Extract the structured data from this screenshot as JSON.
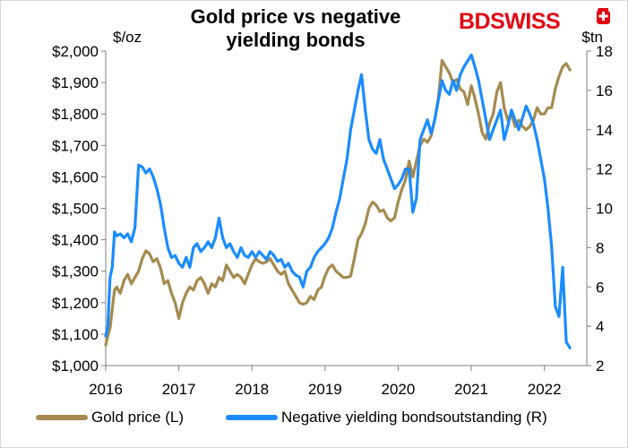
{
  "header": {
    "title_line1": "Gold price vs negative",
    "title_line2": "yielding bonds",
    "logo_text": "BDSWISS",
    "logo_icon": "swiss-cross-icon",
    "logo_color": "#e30613"
  },
  "chart_data": {
    "type": "line",
    "x_ticks": [
      "2016",
      "2017",
      "2018",
      "2019",
      "2020",
      "2021",
      "2022"
    ],
    "xlim": [
      2016,
      2022.58
    ],
    "left_axis": {
      "unit": "$/oz",
      "ylim": [
        1000,
        2000
      ],
      "ticks": [
        "$1,000",
        "$1,100",
        "$1,200",
        "$1,300",
        "$1,400",
        "$1,500",
        "$1,600",
        "$1,700",
        "$1,800",
        "$1,900",
        "$2,000"
      ]
    },
    "right_axis": {
      "unit": "$tn",
      "ylim": [
        2,
        18
      ],
      "ticks": [
        "2",
        "4",
        "6",
        "8",
        "10",
        "12",
        "14",
        "16",
        "18"
      ]
    },
    "grid": false,
    "legend_position": "bottom",
    "series": [
      {
        "name": "Gold price (L)",
        "axis": "left",
        "color": "#a68a4f",
        "x": [
          2016.0,
          2016.03,
          2016.06,
          2016.09,
          2016.12,
          2016.15,
          2016.2,
          2016.25,
          2016.3,
          2016.35,
          2016.4,
          2016.45,
          2016.5,
          2016.55,
          2016.6,
          2016.65,
          2016.7,
          2016.75,
          2016.8,
          2016.85,
          2016.9,
          2016.95,
          2017.0,
          2017.05,
          2017.1,
          2017.15,
          2017.2,
          2017.25,
          2017.3,
          2017.35,
          2017.4,
          2017.45,
          2017.5,
          2017.55,
          2017.6,
          2017.65,
          2017.7,
          2017.75,
          2017.8,
          2017.85,
          2017.9,
          2017.95,
          2018.0,
          2018.05,
          2018.1,
          2018.15,
          2018.2,
          2018.25,
          2018.3,
          2018.35,
          2018.4,
          2018.45,
          2018.5,
          2018.55,
          2018.6,
          2018.65,
          2018.7,
          2018.75,
          2018.8,
          2018.85,
          2018.9,
          2018.95,
          2019.0,
          2019.05,
          2019.1,
          2019.15,
          2019.2,
          2019.25,
          2019.3,
          2019.35,
          2019.4,
          2019.45,
          2019.5,
          2019.55,
          2019.6,
          2019.65,
          2019.7,
          2019.75,
          2019.8,
          2019.85,
          2019.9,
          2019.95,
          2020.0,
          2020.05,
          2020.1,
          2020.15,
          2020.2,
          2020.25,
          2020.3,
          2020.35,
          2020.4,
          2020.45,
          2020.5,
          2020.55,
          2020.6,
          2020.65,
          2020.7,
          2020.75,
          2020.8,
          2020.85,
          2020.9,
          2020.95,
          2021.0,
          2021.05,
          2021.1,
          2021.15,
          2021.2,
          2021.25,
          2021.3,
          2021.35,
          2021.4,
          2021.45,
          2021.5,
          2021.55,
          2021.6,
          2021.65,
          2021.7,
          2021.75,
          2021.8,
          2021.85,
          2021.9,
          2021.95,
          2022.0,
          2022.05,
          2022.1,
          2022.15,
          2022.2,
          2022.25,
          2022.3,
          2022.35
        ],
        "y": [
          1065,
          1095,
          1120,
          1180,
          1240,
          1250,
          1230,
          1270,
          1290,
          1260,
          1280,
          1300,
          1340,
          1365,
          1355,
          1330,
          1340,
          1310,
          1260,
          1270,
          1230,
          1200,
          1150,
          1200,
          1230,
          1250,
          1240,
          1270,
          1280,
          1260,
          1230,
          1260,
          1250,
          1280,
          1270,
          1320,
          1300,
          1280,
          1290,
          1280,
          1260,
          1290,
          1320,
          1340,
          1330,
          1325,
          1330,
          1340,
          1320,
          1300,
          1290,
          1300,
          1260,
          1240,
          1220,
          1200,
          1195,
          1200,
          1220,
          1210,
          1240,
          1250,
          1285,
          1310,
          1320,
          1300,
          1290,
          1280,
          1280,
          1285,
          1340,
          1400,
          1420,
          1450,
          1500,
          1520,
          1510,
          1490,
          1495,
          1470,
          1460,
          1470,
          1520,
          1560,
          1590,
          1650,
          1600,
          1650,
          1700,
          1720,
          1710,
          1730,
          1780,
          1850,
          1970,
          1950,
          1930,
          1900,
          1910,
          1880,
          1870,
          1830,
          1890,
          1850,
          1800,
          1740,
          1720,
          1770,
          1800,
          1870,
          1900,
          1820,
          1780,
          1800,
          1760,
          1780,
          1760,
          1750,
          1760,
          1780,
          1820,
          1800,
          1800,
          1820,
          1820,
          1880,
          1920,
          1950,
          1960,
          1940
        ]
      },
      {
        "name": "Negative yielding bondsoutstanding (R)",
        "axis": "right",
        "color": "#1a8cff",
        "x": [
          2016.0,
          2016.03,
          2016.06,
          2016.09,
          2016.12,
          2016.15,
          2016.2,
          2016.25,
          2016.3,
          2016.35,
          2016.4,
          2016.45,
          2016.5,
          2016.55,
          2016.6,
          2016.65,
          2016.7,
          2016.75,
          2016.8,
          2016.85,
          2016.9,
          2016.95,
          2017.0,
          2017.05,
          2017.1,
          2017.15,
          2017.2,
          2017.25,
          2017.3,
          2017.35,
          2017.4,
          2017.45,
          2017.5,
          2017.55,
          2017.6,
          2017.65,
          2017.7,
          2017.75,
          2017.8,
          2017.85,
          2017.9,
          2017.95,
          2018.0,
          2018.05,
          2018.1,
          2018.15,
          2018.2,
          2018.25,
          2018.3,
          2018.35,
          2018.4,
          2018.45,
          2018.5,
          2018.55,
          2018.6,
          2018.65,
          2018.7,
          2018.75,
          2018.8,
          2018.85,
          2018.9,
          2018.95,
          2019.0,
          2019.05,
          2019.1,
          2019.15,
          2019.2,
          2019.25,
          2019.3,
          2019.35,
          2019.4,
          2019.45,
          2019.5,
          2019.55,
          2019.6,
          2019.65,
          2019.7,
          2019.75,
          2019.8,
          2019.85,
          2019.9,
          2019.95,
          2020.0,
          2020.05,
          2020.1,
          2020.15,
          2020.2,
          2020.25,
          2020.3,
          2020.35,
          2020.4,
          2020.45,
          2020.5,
          2020.55,
          2020.6,
          2020.65,
          2020.7,
          2020.75,
          2020.8,
          2020.85,
          2020.9,
          2020.95,
          2021.0,
          2021.05,
          2021.1,
          2021.15,
          2021.2,
          2021.25,
          2021.3,
          2021.35,
          2021.4,
          2021.45,
          2021.5,
          2021.55,
          2021.6,
          2021.65,
          2021.7,
          2021.75,
          2021.8,
          2021.85,
          2021.9,
          2021.95,
          2022.0,
          2022.05,
          2022.1,
          2022.15,
          2022.2,
          2022.25,
          2022.3,
          2022.35
        ],
        "y": [
          3.5,
          4.0,
          6.5,
          7.0,
          8.8,
          8.6,
          8.7,
          8.5,
          8.7,
          8.3,
          9.0,
          12.2,
          12.1,
          11.8,
          12.0,
          11.6,
          11.0,
          10.2,
          9.0,
          8.0,
          7.5,
          7.6,
          7.2,
          7.0,
          7.5,
          7.0,
          8.0,
          8.2,
          7.8,
          8.0,
          8.3,
          8.0,
          8.5,
          9.5,
          8.5,
          8.0,
          8.2,
          7.8,
          7.5,
          8.0,
          7.6,
          7.5,
          7.8,
          7.5,
          7.8,
          7.6,
          7.4,
          7.8,
          7.6,
          7.3,
          7.4,
          7.0,
          7.2,
          6.8,
          6.6,
          6.5,
          6.0,
          6.8,
          7.0,
          7.5,
          7.8,
          8.0,
          8.2,
          8.5,
          9.0,
          9.8,
          10.5,
          11.5,
          12.5,
          14.0,
          15.0,
          16.0,
          16.8,
          15.0,
          13.5,
          13.0,
          12.8,
          13.5,
          12.5,
          12.0,
          11.5,
          11.0,
          11.2,
          11.5,
          12.0,
          12.0,
          9.8,
          10.5,
          13.5,
          14.0,
          14.5,
          13.8,
          14.5,
          15.5,
          16.5,
          16.0,
          15.8,
          16.5,
          16.0,
          16.8,
          17.2,
          17.5,
          17.8,
          17.2,
          16.5,
          15.5,
          14.5,
          13.5,
          14.0,
          14.5,
          15.0,
          13.5,
          14.2,
          15.0,
          14.5,
          14.0,
          14.6,
          15.2,
          14.8,
          14.3,
          13.5,
          12.5,
          11.5,
          10.0,
          8.0,
          5.0,
          4.5,
          7.0,
          3.2,
          2.9
        ]
      }
    ]
  }
}
